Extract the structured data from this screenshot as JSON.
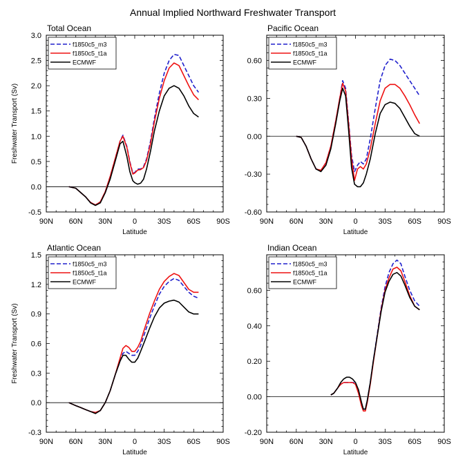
{
  "title": "Annual Implied Northward Freshwater Transport",
  "legend": [
    {
      "name": "f1850c5_m3",
      "color": "#1f1fcc",
      "dash": true
    },
    {
      "name": "f1850c5_t1a",
      "color": "#ee1111",
      "dash": false
    },
    {
      "name": "ECMWF",
      "color": "#000000",
      "dash": false
    }
  ],
  "chart_data": [
    {
      "type": "line",
      "title": "Total Ocean",
      "xlabel": "Latitude",
      "ylabel": "Freshwater Transport (Sv)",
      "xlim": [
        -90,
        90
      ],
      "ylim": [
        -0.5,
        3.0
      ],
      "xticks": [
        -90,
        -60,
        -30,
        0,
        30,
        60,
        90
      ],
      "xticklabels": [
        "90N",
        "60N",
        "30N",
        "0",
        "30S",
        "60S",
        "90S"
      ],
      "yticks": [
        -0.5,
        0.0,
        0.5,
        1.0,
        1.5,
        2.0,
        2.5,
        3.0
      ],
      "yticklabels": [
        "-0.5",
        "0.0",
        "0.5",
        "1.0",
        "1.5",
        "2.0",
        "2.5",
        "3.0"
      ],
      "zero_line": true,
      "series": [
        {
          "name": "f1850c5_m3",
          "x": [
            -67,
            -60,
            -50,
            -45,
            -40,
            -35,
            -30,
            -25,
            -20,
            -15,
            -12,
            -8,
            -5,
            -2,
            0,
            3,
            6,
            9,
            12,
            16,
            20,
            25,
            30,
            35,
            40,
            45,
            50,
            55,
            60,
            65
          ],
          "y": [
            0,
            -0.03,
            -0.2,
            -0.31,
            -0.36,
            -0.3,
            -0.1,
            0.2,
            0.55,
            0.9,
            1.02,
            0.8,
            0.5,
            0.27,
            0.28,
            0.35,
            0.35,
            0.4,
            0.55,
            0.9,
            1.35,
            1.85,
            2.25,
            2.5,
            2.62,
            2.6,
            2.4,
            2.2,
            2.0,
            1.87
          ]
        },
        {
          "name": "f1850c5_t1a",
          "x": [
            -67,
            -60,
            -50,
            -45,
            -40,
            -35,
            -30,
            -25,
            -20,
            -15,
            -12,
            -8,
            -5,
            -2,
            0,
            3,
            6,
            9,
            12,
            16,
            20,
            25,
            30,
            35,
            40,
            45,
            50,
            55,
            60,
            65
          ],
          "y": [
            0,
            -0.03,
            -0.2,
            -0.31,
            -0.36,
            -0.3,
            -0.1,
            0.2,
            0.55,
            0.9,
            1.0,
            0.78,
            0.48,
            0.25,
            0.27,
            0.33,
            0.34,
            0.38,
            0.52,
            0.85,
            1.28,
            1.75,
            2.1,
            2.35,
            2.45,
            2.4,
            2.2,
            2.0,
            1.82,
            1.72
          ]
        },
        {
          "name": "ECMWF",
          "x": [
            -67,
            -60,
            -50,
            -45,
            -40,
            -35,
            -30,
            -25,
            -20,
            -15,
            -12,
            -8,
            -5,
            -2,
            0,
            3,
            6,
            9,
            12,
            16,
            20,
            25,
            30,
            35,
            40,
            45,
            50,
            55,
            60,
            65
          ],
          "y": [
            0,
            -0.03,
            -0.2,
            -0.32,
            -0.37,
            -0.32,
            -0.12,
            0.15,
            0.5,
            0.85,
            0.9,
            0.6,
            0.3,
            0.12,
            0.08,
            0.05,
            0.07,
            0.15,
            0.35,
            0.7,
            1.1,
            1.5,
            1.8,
            1.95,
            2.0,
            1.95,
            1.8,
            1.6,
            1.45,
            1.38
          ]
        }
      ]
    },
    {
      "type": "line",
      "title": "Pacific Ocean",
      "xlabel": "Latitude",
      "ylabel": "",
      "xlim": [
        -90,
        90
      ],
      "ylim": [
        -0.6,
        0.8
      ],
      "xticks": [
        -90,
        -60,
        -30,
        0,
        30,
        60,
        90
      ],
      "xticklabels": [
        "90N",
        "60N",
        "30N",
        "0",
        "30S",
        "60S",
        "90S"
      ],
      "yticks": [
        -0.6,
        -0.3,
        0.0,
        0.3,
        0.6
      ],
      "yticklabels": [
        "-0.60",
        "-0.30",
        "0.00",
        "0.30",
        "0.60"
      ],
      "zero_line": true,
      "series": [
        {
          "name": "f1850c5_m3",
          "x": [
            -60,
            -55,
            -50,
            -45,
            -40,
            -35,
            -30,
            -25,
            -20,
            -16,
            -13,
            -10,
            -7,
            -4,
            -1,
            2,
            5,
            8,
            11,
            15,
            20,
            25,
            30,
            35,
            40,
            45,
            50,
            55,
            60,
            65
          ],
          "y": [
            0,
            -0.01,
            -0.08,
            -0.18,
            -0.26,
            -0.27,
            -0.21,
            -0.08,
            0.12,
            0.3,
            0.44,
            0.38,
            0.12,
            -0.15,
            -0.28,
            -0.23,
            -0.2,
            -0.22,
            -0.18,
            -0.02,
            0.22,
            0.44,
            0.56,
            0.61,
            0.6,
            0.56,
            0.5,
            0.44,
            0.38,
            0.32
          ]
        },
        {
          "name": "f1850c5_t1a",
          "x": [
            -60,
            -55,
            -50,
            -45,
            -40,
            -35,
            -30,
            -25,
            -20,
            -16,
            -13,
            -10,
            -7,
            -4,
            -1,
            2,
            5,
            8,
            11,
            15,
            20,
            25,
            30,
            35,
            40,
            45,
            50,
            55,
            60,
            65
          ],
          "y": [
            0,
            -0.01,
            -0.08,
            -0.18,
            -0.26,
            -0.27,
            -0.21,
            -0.08,
            0.12,
            0.3,
            0.42,
            0.36,
            0.1,
            -0.18,
            -0.35,
            -0.26,
            -0.24,
            -0.26,
            -0.22,
            -0.1,
            0.1,
            0.28,
            0.38,
            0.41,
            0.41,
            0.38,
            0.32,
            0.25,
            0.17,
            0.1
          ]
        },
        {
          "name": "ECMWF",
          "x": [
            -60,
            -55,
            -50,
            -45,
            -40,
            -35,
            -30,
            -25,
            -20,
            -16,
            -13,
            -10,
            -7,
            -4,
            -1,
            2,
            5,
            8,
            11,
            15,
            20,
            25,
            30,
            35,
            40,
            45,
            50,
            55,
            60,
            65
          ],
          "y": [
            0,
            -0.01,
            -0.08,
            -0.18,
            -0.26,
            -0.28,
            -0.23,
            -0.1,
            0.1,
            0.28,
            0.38,
            0.32,
            0.05,
            -0.25,
            -0.38,
            -0.4,
            -0.4,
            -0.37,
            -0.3,
            -0.18,
            0.02,
            0.18,
            0.25,
            0.27,
            0.26,
            0.22,
            0.15,
            0.08,
            0.02,
            0.0
          ]
        }
      ]
    },
    {
      "type": "line",
      "title": "Atlantic Ocean",
      "xlabel": "Latitude",
      "ylabel": "Freshwater Transport (Sv)",
      "xlim": [
        -90,
        90
      ],
      "ylim": [
        -0.3,
        1.5
      ],
      "xticks": [
        -90,
        -60,
        -30,
        0,
        30,
        60,
        90
      ],
      "xticklabels": [
        "90N",
        "60N",
        "30N",
        "0",
        "30S",
        "60S",
        "90S"
      ],
      "yticks": [
        -0.3,
        0.0,
        0.3,
        0.6,
        0.9,
        1.2,
        1.5
      ],
      "yticklabels": [
        "-0.3",
        "0.0",
        "0.3",
        "0.6",
        "0.9",
        "1.2",
        "1.5"
      ],
      "zero_line": true,
      "series": [
        {
          "name": "f1850c5_m3",
          "x": [
            -67,
            -60,
            -55,
            -50,
            -45,
            -40,
            -35,
            -30,
            -25,
            -20,
            -15,
            -12,
            -9,
            -6,
            -3,
            0,
            3,
            6,
            10,
            15,
            20,
            25,
            30,
            35,
            40,
            45,
            50,
            55,
            60,
            65
          ],
          "y": [
            0,
            -0.03,
            -0.05,
            -0.07,
            -0.09,
            -0.1,
            -0.08,
            0.0,
            0.12,
            0.28,
            0.42,
            0.5,
            0.52,
            0.5,
            0.48,
            0.48,
            0.52,
            0.58,
            0.7,
            0.85,
            0.98,
            1.1,
            1.18,
            1.23,
            1.26,
            1.24,
            1.18,
            1.12,
            1.08,
            1.06
          ]
        },
        {
          "name": "f1850c5_t1a",
          "x": [
            -67,
            -60,
            -55,
            -50,
            -45,
            -40,
            -35,
            -30,
            -25,
            -20,
            -15,
            -12,
            -9,
            -6,
            -3,
            0,
            3,
            6,
            10,
            15,
            20,
            25,
            30,
            35,
            40,
            45,
            50,
            55,
            60,
            65
          ],
          "y": [
            0,
            -0.03,
            -0.05,
            -0.07,
            -0.09,
            -0.1,
            -0.08,
            0.0,
            0.12,
            0.28,
            0.45,
            0.55,
            0.58,
            0.56,
            0.52,
            0.52,
            0.56,
            0.62,
            0.75,
            0.9,
            1.03,
            1.15,
            1.23,
            1.28,
            1.31,
            1.29,
            1.22,
            1.15,
            1.12,
            1.12
          ]
        },
        {
          "name": "ECMWF",
          "x": [
            -67,
            -60,
            -55,
            -50,
            -45,
            -40,
            -35,
            -30,
            -25,
            -20,
            -15,
            -12,
            -9,
            -6,
            -3,
            0,
            3,
            6,
            10,
            15,
            20,
            25,
            30,
            35,
            40,
            45,
            50,
            55,
            60,
            65
          ],
          "y": [
            0,
            -0.03,
            -0.05,
            -0.07,
            -0.09,
            -0.11,
            -0.08,
            0.0,
            0.12,
            0.28,
            0.42,
            0.48,
            0.48,
            0.44,
            0.41,
            0.41,
            0.45,
            0.52,
            0.62,
            0.75,
            0.87,
            0.96,
            1.01,
            1.03,
            1.04,
            1.02,
            0.97,
            0.92,
            0.9,
            0.9
          ]
        }
      ]
    },
    {
      "type": "line",
      "title": "Indian Ocean",
      "xlabel": "Latitude",
      "ylabel": "",
      "xlim": [
        -90,
        90
      ],
      "ylim": [
        -0.2,
        0.8
      ],
      "xticks": [
        -90,
        -60,
        -30,
        0,
        30,
        60,
        90
      ],
      "xticklabels": [
        "90N",
        "60N",
        "30N",
        "0",
        "30S",
        "60S",
        "90S"
      ],
      "yticks": [
        -0.2,
        0.0,
        0.2,
        0.4,
        0.6
      ],
      "yticklabels": [
        "-0.20",
        "0.00",
        "0.20",
        "0.40",
        "0.60"
      ],
      "zero_line": true,
      "series": [
        {
          "name": "f1850c5_m3",
          "x": [
            -25,
            -22,
            -18,
            -15,
            -12,
            -9,
            -6,
            -3,
            0,
            3,
            6,
            8,
            10,
            12,
            15,
            18,
            22,
            26,
            30,
            34,
            38,
            42,
            46,
            50,
            55,
            60,
            65
          ],
          "y": [
            0.01,
            0.02,
            0.05,
            0.07,
            0.08,
            0.08,
            0.08,
            0.08,
            0.08,
            0.03,
            -0.04,
            -0.07,
            -0.07,
            -0.02,
            0.08,
            0.2,
            0.35,
            0.5,
            0.62,
            0.7,
            0.75,
            0.77,
            0.75,
            0.68,
            0.6,
            0.54,
            0.51
          ]
        },
        {
          "name": "f1850c5_t1a",
          "x": [
            -25,
            -22,
            -18,
            -15,
            -12,
            -9,
            -6,
            -3,
            0,
            3,
            6,
            8,
            10,
            12,
            15,
            18,
            22,
            26,
            30,
            34,
            38,
            42,
            46,
            50,
            55,
            60,
            65
          ],
          "y": [
            0.01,
            0.02,
            0.05,
            0.07,
            0.08,
            0.08,
            0.08,
            0.08,
            0.07,
            0.02,
            -0.05,
            -0.08,
            -0.08,
            -0.03,
            0.07,
            0.19,
            0.34,
            0.49,
            0.6,
            0.67,
            0.72,
            0.73,
            0.71,
            0.65,
            0.57,
            0.51,
            0.49
          ]
        },
        {
          "name": "ECMWF",
          "x": [
            -25,
            -22,
            -18,
            -15,
            -12,
            -9,
            -6,
            -3,
            0,
            3,
            6,
            8,
            10,
            12,
            15,
            18,
            22,
            26,
            30,
            34,
            38,
            42,
            46,
            50,
            55,
            60,
            65
          ],
          "y": [
            0.01,
            0.02,
            0.05,
            0.08,
            0.1,
            0.11,
            0.11,
            0.1,
            0.08,
            0.04,
            -0.03,
            -0.07,
            -0.07,
            -0.02,
            0.08,
            0.2,
            0.34,
            0.48,
            0.59,
            0.65,
            0.69,
            0.7,
            0.68,
            0.63,
            0.56,
            0.51,
            0.49
          ]
        }
      ]
    }
  ]
}
